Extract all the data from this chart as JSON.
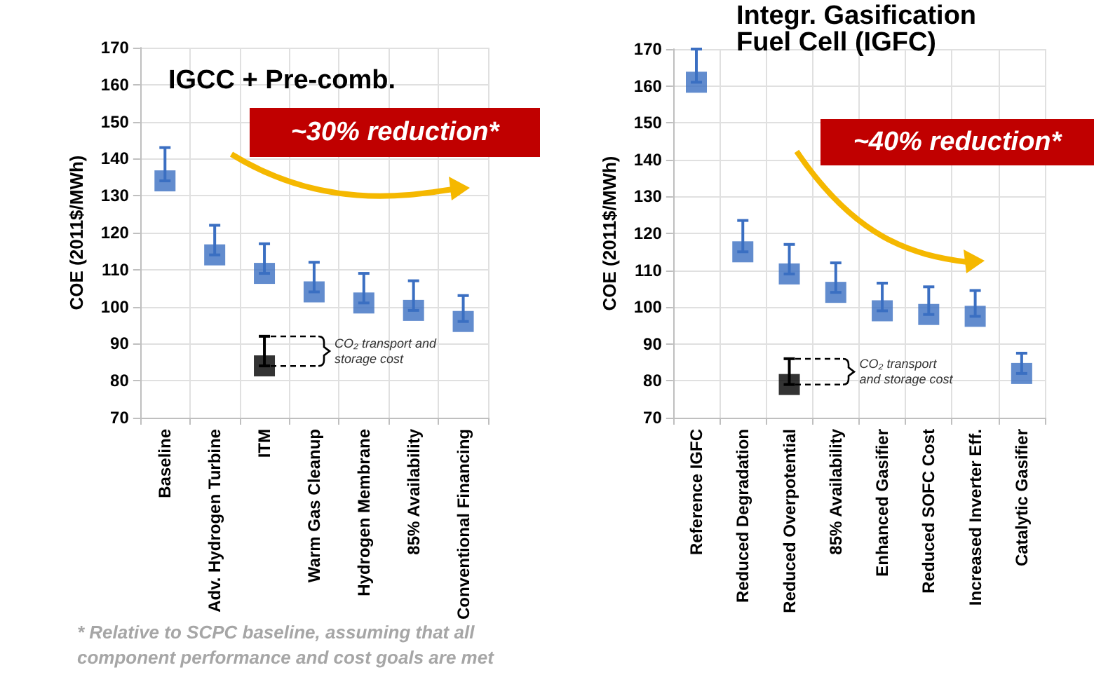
{
  "chart_data": [
    {
      "type": "scatter",
      "title": "IGCC + Pre-comb.",
      "ylabel": "COE (2011$/MWh)",
      "categories": [
        "Baseline",
        "Adv. Hydrogen Turbine",
        "ITM",
        "Warm Gas Cleanup",
        "Hydrogen Membrane",
        "85% Availability",
        "Conventional Financing"
      ],
      "series": [
        {
          "color": "#3b6fc2",
          "values": [
            134,
            114,
            109,
            104,
            101,
            99,
            96
          ],
          "errors": [
            [
              134,
              143
            ],
            [
              114,
              122
            ],
            [
              109,
              117
            ],
            [
              104,
              112
            ],
            [
              101,
              109
            ],
            [
              99,
              107
            ],
            [
              96,
              103
            ]
          ]
        },
        {
          "color": "#000000",
          "values": [
            null,
            null,
            84,
            null,
            null,
            null,
            null
          ],
          "errors": [
            null,
            null,
            [
              84,
              92
            ],
            null,
            null,
            null,
            null
          ]
        }
      ],
      "ylim": [
        70,
        170
      ],
      "yticks": [
        70,
        80,
        90,
        100,
        110,
        120,
        130,
        140,
        150,
        160,
        170
      ],
      "grid": true,
      "marker": "square",
      "annotations": [
        "~30% reduction*",
        "CO₂ transport and storage cost",
        "* Relative to SCPC baseline, assuming that all component performance and cost goals are met"
      ]
    },
    {
      "type": "scatter",
      "title": "Integr. Gasification Fuel Cell (IGFC)",
      "ylabel": "COE (2011$/MWh)",
      "categories": [
        "Reference IGFC",
        "Reduced Degradation",
        "Reduced Overpotential",
        "85% Availability",
        "Enhanced Gasifier",
        "Reduced SOFC Cost",
        "Increased Inverter Eff.",
        "Catalytic Gasifier"
      ],
      "series": [
        {
          "color": "#3b6fc2",
          "values": [
            161,
            115,
            109,
            104,
            99,
            98,
            97.5,
            82
          ],
          "errors": [
            [
              161,
              170
            ],
            [
              115,
              123.5
            ],
            [
              109,
              117
            ],
            [
              104,
              112
            ],
            [
              99,
              106.5
            ],
            [
              98,
              105.5
            ],
            [
              97.5,
              104.5
            ],
            [
              82,
              87.5
            ]
          ]
        },
        {
          "color": "#000000",
          "values": [
            null,
            null,
            79,
            null,
            null,
            null,
            null,
            null
          ],
          "errors": [
            null,
            null,
            [
              79,
              86
            ],
            null,
            null,
            null,
            null,
            null
          ]
        }
      ],
      "ylim": [
        70,
        170
      ],
      "yticks": [
        70,
        80,
        90,
        100,
        110,
        120,
        130,
        140,
        150,
        160,
        170
      ],
      "grid": true,
      "marker": "square",
      "annotations": [
        "~40% reduction*",
        "CO₂ transport and storage cost"
      ]
    }
  ]
}
